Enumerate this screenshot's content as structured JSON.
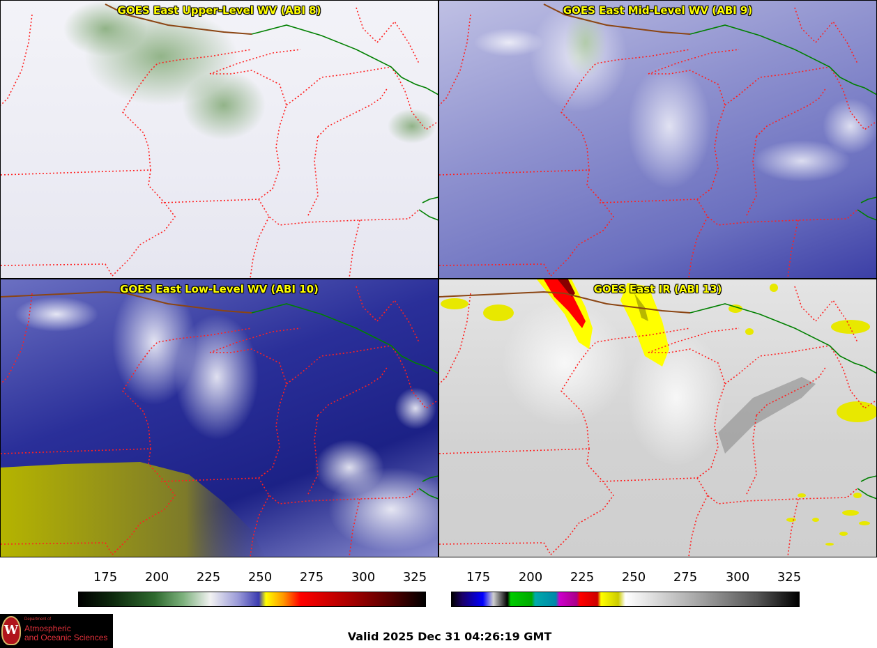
{
  "panels": [
    {
      "title": "GOES East Upper-Level WV (ABI 8)"
    },
    {
      "title": "GOES East Mid-Level WV (ABI 9)"
    },
    {
      "title": "GOES East Low-Level WV (ABI 10)"
    },
    {
      "title": "GOES East IR (ABI 13)"
    }
  ],
  "colorbar_wv": {
    "ticks": [
      "175",
      "200",
      "225",
      "250",
      "275",
      "300",
      "325"
    ]
  },
  "colorbar_ir": {
    "ticks": [
      "175",
      "200",
      "225",
      "250",
      "275",
      "300",
      "325"
    ]
  },
  "logo": {
    "dept": "Department of",
    "line1": "Atmospheric",
    "line2": "and Oceanic Sciences",
    "crest_letter": "W"
  },
  "valid_time": "Valid 2025 Dec 31 04:26:19 GMT",
  "colors": {
    "title_text": "#ffff00",
    "state_borders": "#ff2020",
    "country_border": "#8b4513",
    "canada_border": "#008000"
  }
}
